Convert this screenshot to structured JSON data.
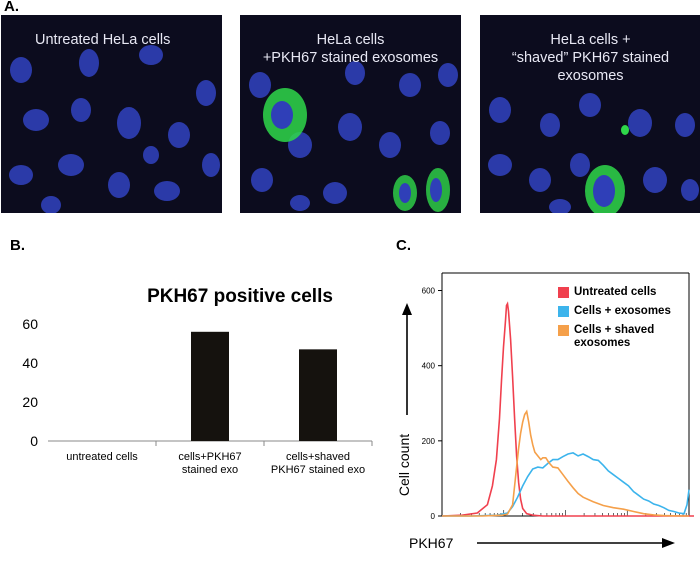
{
  "panel_a": {
    "letter": "A.",
    "images": [
      {
        "caption": "Untreated HeLa cells"
      },
      {
        "caption": "HeLa cells\n+PKH67 stained exosomes"
      },
      {
        "caption": "HeLa cells +\n“shaved” PKH67 stained\nexosomes"
      }
    ]
  },
  "panel_b": {
    "letter": "B."
  },
  "panel_c": {
    "letter": "C."
  },
  "colors": {
    "nucleus": "#2f3fb8",
    "green": "#2fd84a",
    "untreated": "#f0404e",
    "exosomes": "#3cb4ec",
    "shaved": "#f5a04a",
    "bar": "#15120e"
  },
  "chart_data": [
    {
      "type": "bar",
      "title": "PKH67 positive cells",
      "categories": [
        "untreated cells",
        "cells+PKH67\nstained exo",
        "cells+shaved\nPKH67 stained exo"
      ],
      "values": [
        0,
        56,
        47
      ],
      "yticks": [
        0,
        20,
        40,
        60
      ],
      "ylim": [
        0,
        60
      ],
      "xlabel": "",
      "ylabel": "",
      "grid": false
    },
    {
      "type": "line",
      "title": "",
      "xlabel": "PKH67",
      "ylabel": "Cell count",
      "yticks": [
        0,
        200,
        400,
        600
      ],
      "ylim": [
        0,
        620
      ],
      "x_scale": "log",
      "legend_position": "top-right",
      "series": [
        {
          "name": "Untreated cells",
          "color_key": "untreated",
          "points": [
            [
              0,
              0
            ],
            [
              20,
              2
            ],
            [
              35,
              8
            ],
            [
              45,
              30
            ],
            [
              50,
              80
            ],
            [
              54,
              150
            ],
            [
              57,
              260
            ],
            [
              59,
              360
            ],
            [
              61,
              450
            ],
            [
              63,
              520
            ],
            [
              64,
              560
            ],
            [
              65,
              565
            ],
            [
              66,
              545
            ],
            [
              68,
              470
            ],
            [
              70,
              370
            ],
            [
              72,
              260
            ],
            [
              74,
              160
            ],
            [
              76,
              90
            ],
            [
              78,
              45
            ],
            [
              80,
              20
            ],
            [
              84,
              6
            ],
            [
              90,
              2
            ],
            [
              100,
              0
            ],
            [
              150,
              0
            ],
            [
              250,
              0
            ]
          ]
        },
        {
          "name": "Cells + exosomes",
          "color_key": "exosomes",
          "points": [
            [
              0,
              0
            ],
            [
              30,
              0
            ],
            [
              55,
              2
            ],
            [
              65,
              8
            ],
            [
              70,
              25
            ],
            [
              75,
              50
            ],
            [
              80,
              80
            ],
            [
              85,
              105
            ],
            [
              90,
              125
            ],
            [
              95,
              130
            ],
            [
              100,
              128
            ],
            [
              105,
              140
            ],
            [
              110,
              150
            ],
            [
              115,
              150
            ],
            [
              120,
              158
            ],
            [
              125,
              165
            ],
            [
              130,
              168
            ],
            [
              135,
              160
            ],
            [
              140,
              165
            ],
            [
              145,
              158
            ],
            [
              150,
              150
            ],
            [
              155,
              148
            ],
            [
              160,
              135
            ],
            [
              165,
              120
            ],
            [
              170,
              110
            ],
            [
              175,
              100
            ],
            [
              180,
              90
            ],
            [
              185,
              80
            ],
            [
              190,
              65
            ],
            [
              195,
              55
            ],
            [
              200,
              45
            ],
            [
              205,
              40
            ],
            [
              210,
              32
            ],
            [
              215,
              28
            ],
            [
              220,
              22
            ],
            [
              225,
              15
            ],
            [
              230,
              12
            ],
            [
              235,
              8
            ],
            [
              240,
              6
            ],
            [
              243,
              30
            ],
            [
              245,
              70
            ]
          ]
        },
        {
          "name": "Cells + shaved exosomes",
          "color_key": "shaved",
          "points": [
            [
              0,
              0
            ],
            [
              40,
              0
            ],
            [
              60,
              2
            ],
            [
              65,
              5
            ],
            [
              70,
              30
            ],
            [
              72,
              80
            ],
            [
              74,
              130
            ],
            [
              76,
              180
            ],
            [
              78,
              220
            ],
            [
              80,
              250
            ],
            [
              82,
              270
            ],
            [
              84,
              278
            ],
            [
              86,
              250
            ],
            [
              88,
              215
            ],
            [
              90,
              190
            ],
            [
              92,
              170
            ],
            [
              95,
              160
            ],
            [
              98,
              150
            ],
            [
              100,
              155
            ],
            [
              103,
              155
            ],
            [
              106,
              142
            ],
            [
              110,
              130
            ],
            [
              115,
              128
            ],
            [
              120,
              110
            ],
            [
              125,
              92
            ],
            [
              130,
              75
            ],
            [
              135,
              60
            ],
            [
              140,
              50
            ],
            [
              150,
              38
            ],
            [
              160,
              28
            ],
            [
              170,
              22
            ],
            [
              180,
              18
            ],
            [
              190,
              12
            ],
            [
              200,
              6
            ],
            [
              210,
              3
            ],
            [
              220,
              1
            ],
            [
              240,
              0
            ],
            [
              245,
              0
            ]
          ]
        }
      ]
    }
  ]
}
